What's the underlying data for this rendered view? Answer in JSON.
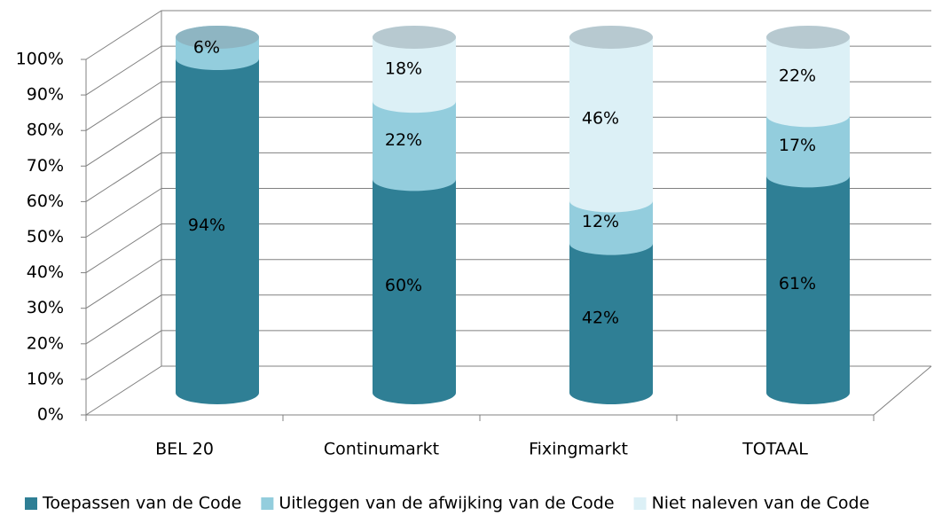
{
  "chart_data": {
    "type": "bar",
    "stacked": true,
    "categories": [
      "BEL 20",
      "Continumarkt",
      "Fixingmarkt",
      "TOTAAL"
    ],
    "series": [
      {
        "name": "Toepassen van de Code",
        "color": "#2f7f95",
        "values": [
          94,
          60,
          42,
          61
        ],
        "value_labels": [
          "94%",
          "60%",
          "42%",
          "61%"
        ]
      },
      {
        "name": "Uitleggen van de afwijking van de Code",
        "color": "#93cddd",
        "values": [
          6,
          22,
          12,
          17
        ],
        "value_labels": [
          "6%",
          "22%",
          "12%",
          "17%"
        ]
      },
      {
        "name": "Niet naleven van de Code",
        "color": "#dcf0f6",
        "values": [
          null,
          18,
          46,
          22
        ],
        "value_labels": [
          null,
          "18%",
          "46%",
          "22%"
        ]
      }
    ],
    "ylim": [
      0,
      100
    ],
    "yticks": [
      {
        "value": 0,
        "label": "0%"
      },
      {
        "value": 10,
        "label": "10%"
      },
      {
        "value": 20,
        "label": "20%"
      },
      {
        "value": 30,
        "label": "30%"
      },
      {
        "value": 40,
        "label": "40%"
      },
      {
        "value": 50,
        "label": "50%"
      },
      {
        "value": 60,
        "label": "60%"
      },
      {
        "value": 70,
        "label": "70%"
      },
      {
        "value": 80,
        "label": "80%"
      },
      {
        "value": 90,
        "label": "90%"
      },
      {
        "value": 100,
        "label": "100%"
      }
    ],
    "grid": true,
    "legend": "bottom"
  }
}
